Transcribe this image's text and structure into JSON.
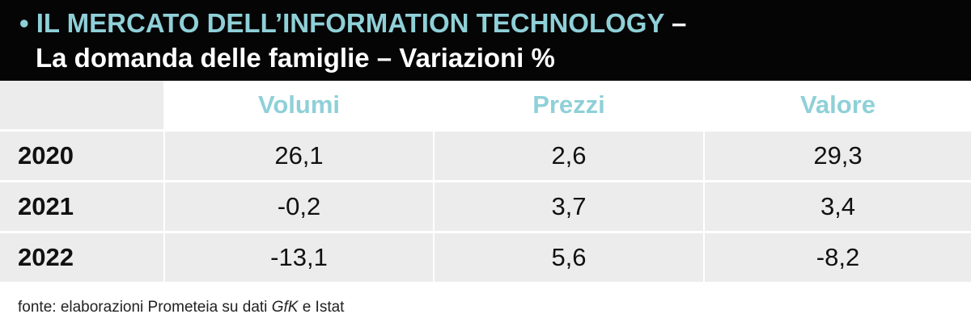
{
  "title": {
    "bullet": "•",
    "main": "IL MERCATO DELL’INFORMATION TECHNOLOGY",
    "dash": "–",
    "subtitle": "La domanda delle famiglie – Variazioni %"
  },
  "chart_data": {
    "type": "table",
    "title": "IL MERCATO DELL’INFORMATION TECHNOLOGY – La domanda delle famiglie – Variazioni %",
    "columns": [
      "Volumi",
      "Prezzi",
      "Valore"
    ],
    "rows": [
      {
        "year": "2020",
        "values": [
          "26,1",
          "2,6",
          "29,3"
        ]
      },
      {
        "year": "2021",
        "values": [
          "-0,2",
          "3,7",
          "3,4"
        ]
      },
      {
        "year": "2022",
        "values": [
          "-13,1",
          "5,6",
          "-8,2"
        ]
      }
    ]
  },
  "source": {
    "prefix": "fonte: elaborazioni Prometeia su dati ",
    "italic": "GfK",
    "suffix": " e Istat"
  },
  "colors": {
    "banner": "#050505",
    "accent": "#8fd0d8",
    "cell_bg": "#ececec"
  }
}
